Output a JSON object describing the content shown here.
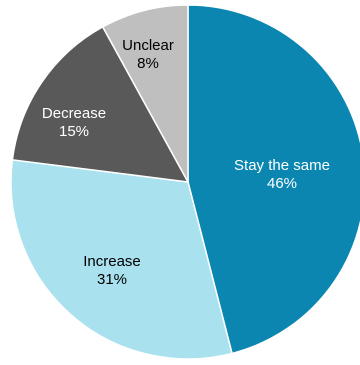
{
  "chart_data": {
    "type": "pie",
    "title": "",
    "slices": [
      {
        "label": "Stay the same",
        "value": 46,
        "display": "46%",
        "color": "#0a86b0",
        "text_color": "#ffffff"
      },
      {
        "label": "Increase",
        "value": 31,
        "display": "31%",
        "color": "#a9e1ef",
        "text_color": "#000000"
      },
      {
        "label": "Decrease",
        "value": 15,
        "display": "15%",
        "color": "#595959",
        "text_color": "#ffffff"
      },
      {
        "label": "Unclear",
        "value": 8,
        "display": "8%",
        "color": "#bfbfbf",
        "text_color": "#000000"
      }
    ],
    "start_angle_deg": 0,
    "direction": "clockwise",
    "legend": "none"
  }
}
